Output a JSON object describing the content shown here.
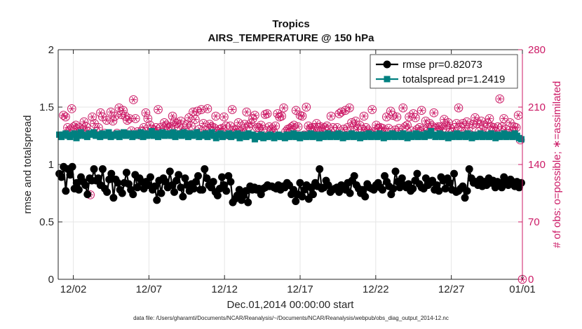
{
  "title": "Tropics",
  "subtitle": "AIRS_TEMPERATURE @ 150 hPa",
  "footer": "data file: /Users/gharamti/Documents/NCAR/Reanalysis/~/Documents/NCAR/Reanalysis/webpub/obs_diag_output_2014-12.nc",
  "colors": {
    "rmse": "#000000",
    "totalspread": "#008080",
    "obs": "#cc1a66",
    "grid": "#e6e6e6",
    "axis": "#262626"
  },
  "chart_data": {
    "type": "line",
    "title": "Tropics",
    "subtitle": "AIRS_TEMPERATURE @ 150 hPa",
    "xlabel": "Dec.01,2014 00:00:00 start",
    "ylabel": "rmse and totalspread",
    "y2label": "# of obs: o=possible; ∗=assimilated",
    "xlim": [
      0.5,
      31.2
    ],
    "ylim": [
      0,
      2
    ],
    "y2lim": [
      0,
      280
    ],
    "xticks": [
      1.5,
      6.5,
      11.5,
      16.5,
      21.5,
      26.5,
      31.5
    ],
    "xtick_labels": [
      "12/02",
      "12/07",
      "12/12",
      "12/17",
      "12/22",
      "12/27",
      "01/01"
    ],
    "yticks": [
      0,
      0.5,
      1,
      1.5,
      2
    ],
    "ytick_labels": [
      "0",
      "0.5",
      "1",
      "1.5",
      "2"
    ],
    "y2ticks": [
      0,
      70,
      140,
      210,
      280
    ],
    "y2tick_labels": [
      "0",
      "70",
      "140",
      "210",
      "280"
    ],
    "legend_position": "top-right",
    "series": [
      {
        "name": "rmse pr=0.82073",
        "axis": "left",
        "marker": "circle",
        "values": [
          0.92,
          0.89,
          0.98,
          0.77,
          0.96,
          0.91,
          0.98,
          0.79,
          0.84,
          0.78,
          0.89,
          0.85,
          0.82,
          0.74,
          0.88,
          0.86,
          0.96,
          0.86,
          0.88,
          0.82,
          0.96,
          0.79,
          0.76,
          0.87,
          0.92,
          0.71,
          0.87,
          0.84,
          0.78,
          0.75,
          0.84,
          0.93,
          0.83,
          0.78,
          0.74,
          0.91,
          0.8,
          0.88,
          0.85,
          0.79,
          0.85,
          0.82,
          0.89,
          0.78,
          0.81,
          0.69,
          0.86,
          0.75,
          0.88,
          0.85,
          0.8,
          0.94,
          0.82,
          0.76,
          0.86,
          0.91,
          0.8,
          0.72,
          0.88,
          0.82,
          0.77,
          0.83,
          0.79,
          0.85,
          0.9,
          0.78,
          0.78,
          0.96,
          0.88,
          0.82,
          0.8,
          0.85,
          0.76,
          0.73,
          0.79,
          0.89,
          0.82,
          0.77,
          0.9,
          0.85,
          0.67,
          0.7,
          0.73,
          0.78,
          0.69,
          0.73,
          0.77,
          0.67,
          0.81,
          0.78,
          0.8,
          0.78,
          0.79,
          0.74,
          0.79,
          0.8,
          0.82,
          0.81,
          0.81,
          0.8,
          0.79,
          0.82,
          0.78,
          0.81,
          0.8,
          0.84,
          0.82,
          0.74,
          0.78,
          0.68,
          0.74,
          0.84,
          0.72,
          0.78,
          0.82,
          0.7,
          0.8,
          0.74,
          0.84,
          0.81,
          0.96,
          0.79,
          0.8,
          0.86,
          0.82,
          0.76,
          0.78,
          0.79,
          0.8,
          0.76,
          0.82,
          0.8,
          0.78,
          0.84,
          0.75,
          0.86,
          0.9,
          0.82,
          0.79,
          0.75,
          0.78,
          0.72,
          0.83,
          0.8,
          0.79,
          0.78,
          0.82,
          0.84,
          0.8,
          0.78,
          0.9,
          0.85,
          0.81,
          0.74,
          0.79,
          0.94,
          0.85,
          0.8,
          0.88,
          0.82,
          0.8,
          0.83,
          0.77,
          0.79,
          0.86,
          0.92,
          0.83,
          0.8,
          0.79,
          0.88,
          0.82,
          0.84,
          0.86,
          0.78,
          0.82,
          0.77,
          0.89,
          0.86,
          0.79,
          0.88,
          0.84,
          0.78,
          0.92,
          0.76,
          0.77,
          0.79,
          0.81,
          0.71,
          0.77,
          0.96,
          0.88,
          0.84,
          0.85,
          0.82,
          0.87,
          0.81,
          0.85,
          0.82,
          0.88,
          0.84,
          0.86,
          0.8,
          0.85,
          0.84,
          0.8,
          0.89,
          0.85,
          0.82,
          0.87,
          0.85,
          0.81,
          0.85,
          0.8,
          0.84
        ]
      },
      {
        "name": "totalspread pr=1.2419",
        "axis": "left",
        "marker": "square",
        "values": [
          1.26,
          1.24,
          1.26,
          1.27,
          1.25,
          1.24,
          1.26,
          1.27,
          1.23,
          1.25,
          1.28,
          1.26,
          1.25,
          1.24,
          1.27,
          1.26,
          1.28,
          1.25,
          1.26,
          1.24,
          1.27,
          1.25,
          1.26,
          1.28,
          1.24,
          1.26,
          1.25,
          1.27,
          1.24,
          1.26,
          1.28,
          1.25,
          1.27,
          1.26,
          1.24,
          1.27,
          1.25,
          1.26,
          1.28,
          1.24,
          1.27,
          1.25,
          1.26,
          1.29,
          1.25,
          1.27,
          1.24,
          1.26,
          1.28,
          1.25,
          1.27,
          1.26,
          1.25,
          1.28,
          1.24,
          1.26,
          1.27,
          1.25,
          1.28,
          1.26,
          1.24,
          1.27,
          1.25,
          1.26,
          1.28,
          1.24,
          1.26,
          1.25,
          1.27,
          1.24,
          1.26,
          1.28,
          1.25,
          1.23,
          1.26,
          1.27,
          1.24,
          1.26,
          1.25,
          1.27,
          1.24,
          1.26,
          1.25,
          1.27,
          1.23,
          1.25,
          1.26,
          1.24,
          1.27,
          1.25,
          1.26,
          1.22,
          1.25,
          1.24,
          1.26,
          1.23,
          1.25,
          1.24,
          1.26,
          1.25,
          1.23,
          1.25,
          1.26,
          1.24,
          1.25,
          1.23,
          1.26,
          1.24,
          1.25,
          1.27,
          1.24,
          1.26,
          1.23,
          1.25,
          1.26,
          1.24,
          1.25,
          1.27,
          1.24,
          1.26,
          1.25,
          1.23,
          1.26,
          1.24,
          1.25,
          1.27,
          1.24,
          1.25,
          1.26,
          1.24,
          1.27,
          1.25,
          1.23,
          1.26,
          1.24,
          1.25,
          1.27,
          1.24,
          1.26,
          1.25,
          1.23,
          1.26,
          1.24,
          1.25,
          1.27,
          1.24,
          1.26,
          1.25,
          1.24,
          1.27,
          1.25,
          1.23,
          1.26,
          1.24,
          1.25,
          1.27,
          1.24,
          1.26,
          1.25,
          1.24,
          1.27,
          1.25,
          1.23,
          1.26,
          1.24,
          1.25,
          1.27,
          1.24,
          1.26,
          1.25,
          1.24,
          1.27,
          1.25,
          1.29,
          1.26,
          1.24,
          1.25,
          1.27,
          1.24,
          1.26,
          1.25,
          1.23,
          1.26,
          1.24,
          1.25,
          1.27,
          1.24,
          1.26,
          1.25,
          1.24,
          1.27,
          1.25,
          1.23,
          1.26,
          1.24,
          1.25,
          1.27,
          1.24,
          1.26,
          1.25,
          1.24,
          1.27,
          1.25,
          1.23,
          1.26,
          1.24,
          1.25,
          1.27,
          1.24,
          1.26,
          1.25,
          1.24,
          1.27,
          1.25,
          1.23,
          1.22
        ]
      },
      {
        "name": "# of obs (possible / assimilated)",
        "axis": "right",
        "marker": "circle-asterisk",
        "values": [
          200,
          198,
          185,
          182,
          208,
          186,
          188,
          180,
          185,
          182,
          192,
          186,
          180,
          103,
          198,
          190,
          180,
          185,
          203,
          198,
          178,
          194,
          176,
          204,
          193,
          199,
          178,
          209,
          201,
          206,
          199,
          194,
          196,
          181,
          219,
          196,
          180,
          176,
          181,
          185,
          203,
          196,
          188,
          183,
          182,
          185,
          207,
          185,
          179,
          191,
          188,
          185,
          186,
          199,
          192,
          190,
          186,
          193,
          179,
          182,
          189,
          197,
          187,
          204,
          195,
          205,
          183,
          207,
          190,
          182,
          208,
          189,
          186,
          185,
          199,
          180,
          183,
          184,
          198,
          187,
          176,
          187,
          207,
          182,
          183,
          191,
          180,
          182,
          189,
          204,
          186,
          190,
          196,
          200,
          185,
          185,
          188,
          183,
          201,
          202,
          186,
          183,
          180,
          187,
          202,
          198,
          199,
          209,
          180,
          183,
          184,
          186,
          188,
          206,
          186,
          200,
          199,
          176,
          210,
          187,
          184,
          185,
          185,
          190,
          185,
          186,
          179,
          185,
          187,
          178,
          199,
          185,
          180,
          185,
          202,
          204,
          183,
          206,
          185,
          209,
          191,
          186,
          193,
          183,
          188,
          183,
          199,
          185,
          182,
          178,
          207,
          180,
          188,
          184,
          185,
          184,
          180,
          198,
          184,
          205,
          200,
          182,
          198,
          184,
          177,
          209,
          186,
          188,
          198,
          181,
          202,
          197,
          183,
          185,
          206,
          182,
          193,
          185,
          190,
          187,
          203,
          184,
          186,
          186,
          183,
          195,
          188,
          191,
          184,
          180,
          185,
          190,
          209,
          186,
          190,
          180,
          192,
          185,
          176,
          189,
          197,
          190,
          180,
          193,
          187,
          180,
          190,
          196,
          186,
          185,
          180,
          186,
          220,
          186,
          196,
          183,
          178,
          191,
          180,
          186,
          185,
          200,
          170,
          0
        ]
      }
    ]
  },
  "legend": {
    "rmse_label": "rmse pr=0.82073",
    "spread_label": "totalspread pr=1.2419"
  }
}
